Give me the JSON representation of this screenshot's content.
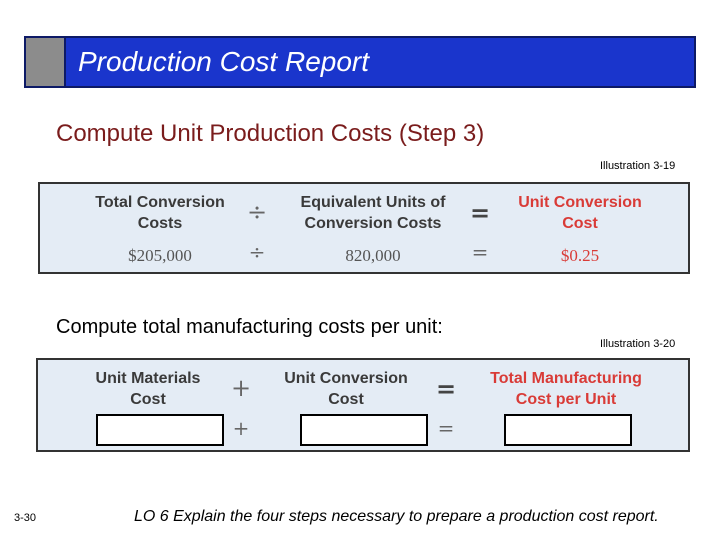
{
  "title": "Production Cost Report",
  "subtitle": "Compute Unit Production Costs (Step 3)",
  "illustration1": {
    "label": "Illustration 3-19",
    "header": {
      "col1_line1": "Total Conversion",
      "col1_line2": "Costs",
      "op1": "÷",
      "col2_line1": "Equivalent Units of",
      "col2_line2": "Conversion Costs",
      "op2": "=",
      "col3_line1": "Unit Conversion",
      "col3_line2": "Cost"
    },
    "values": {
      "v1": "$205,000",
      "op1": "÷",
      "v2": "820,000",
      "op2": "=",
      "v3": "$0.25"
    }
  },
  "body_text": "Compute total manufacturing costs per unit:",
  "illustration2": {
    "label": "Illustration 3-20",
    "header": {
      "col1_line1": "Unit Materials",
      "col1_line2": "Cost",
      "op1": "+",
      "col2_line1": "Unit Conversion",
      "col2_line2": "Cost",
      "op2": "=",
      "col3_line1": "Total Manufacturing",
      "col3_line2": "Cost per Unit"
    },
    "values": {
      "op1": "+",
      "op2": "="
    }
  },
  "slide_number": "3-30",
  "learning_objective": "LO 6  Explain the four steps necessary to prepare a production cost report.",
  "colors": {
    "title_bar": "#1a35cc",
    "subtitle": "#7a1c1c",
    "formula_bg": "#e4ecf5",
    "accent_red": "#d93b37"
  }
}
